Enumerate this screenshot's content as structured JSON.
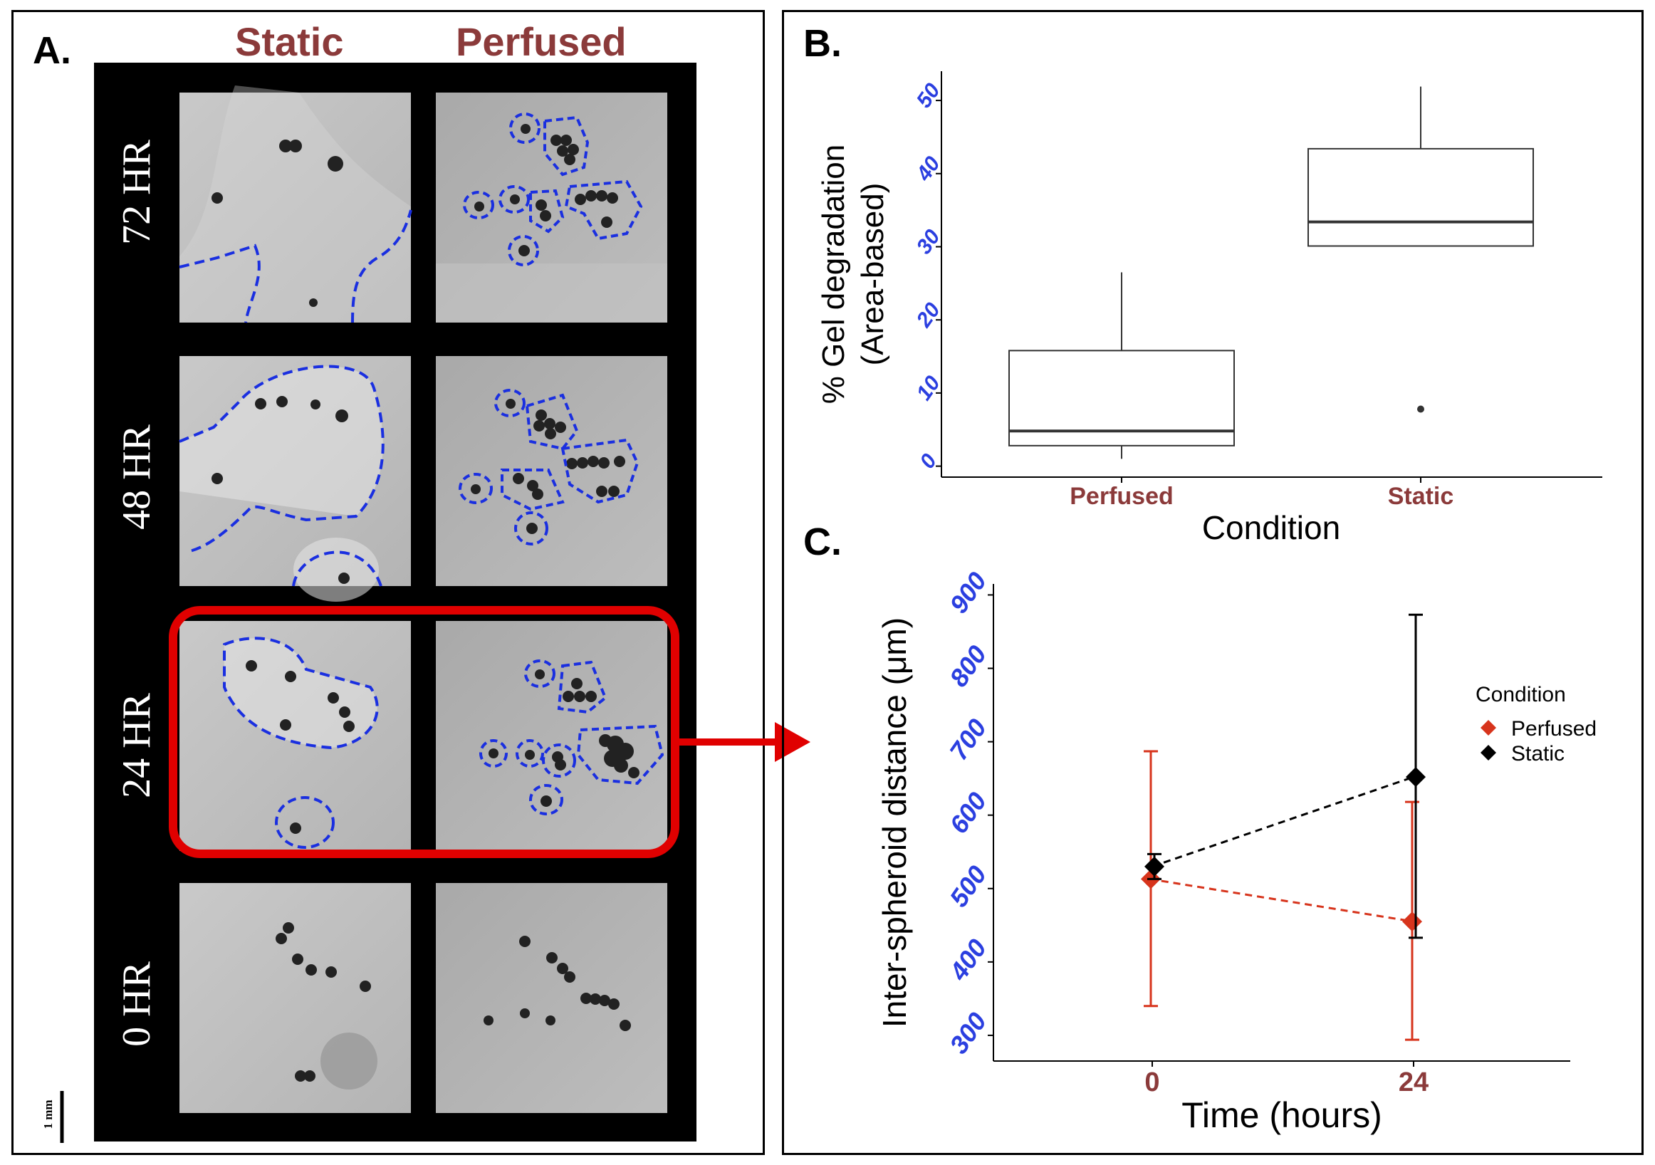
{
  "panel_a": {
    "letter": "A.",
    "columns": [
      "Static",
      "Perfused"
    ],
    "rows": [
      "72 HR",
      "48 HR",
      "24 HR",
      "0 HR"
    ],
    "scale_bar": "1 mm",
    "highlight_color": "#e00000",
    "outline_color": "#1a2fe0"
  },
  "panel_b": {
    "letter": "B."
  },
  "panel_c": {
    "letter": "C."
  },
  "colors": {
    "tick_blue": "#2b3fe0",
    "category_red": "#8b3a3a",
    "perfused": "#d7341c",
    "static": "#000000"
  },
  "chart_data": [
    {
      "id": "B",
      "type": "box",
      "title": "",
      "xlabel": "Condition",
      "ylabel_line1": "% Gel degradation",
      "ylabel_line2": "(Area-based)",
      "categories": [
        "Perfused",
        "Static"
      ],
      "yticks": [
        "0",
        "10",
        "20",
        "30",
        "40",
        "50"
      ],
      "ylim": [
        -1.5,
        54
      ],
      "boxes": [
        {
          "name": "Perfused",
          "whisker_low": 1,
          "q1": 2.8,
          "median": 4.8,
          "q3": 15.8,
          "whisker_high": 26.5,
          "outliers": []
        },
        {
          "name": "Static",
          "whisker_low": 30.1,
          "q1": 30.1,
          "median": 33.4,
          "q3": 43.4,
          "whisker_high": 51.9,
          "outliers": [
            7.8
          ]
        }
      ]
    },
    {
      "id": "C",
      "type": "line",
      "title": "",
      "xlabel": "Time (hours)",
      "ylabel": "Inter-spheroid distance (μm)",
      "x": [
        "0",
        "24"
      ],
      "yticks": [
        "300",
        "400",
        "500",
        "600",
        "700",
        "800",
        "900"
      ],
      "ylim": [
        265,
        915
      ],
      "legend_title": "Condition",
      "series": [
        {
          "name": "Perfused",
          "values": [
            513,
            455
          ],
          "err_low": [
            340,
            294
          ],
          "err_high": [
            687,
            618
          ]
        },
        {
          "name": "Static",
          "values": [
            530,
            652
          ],
          "err_low": [
            513,
            433
          ],
          "err_high": [
            547,
            873
          ]
        }
      ]
    }
  ]
}
